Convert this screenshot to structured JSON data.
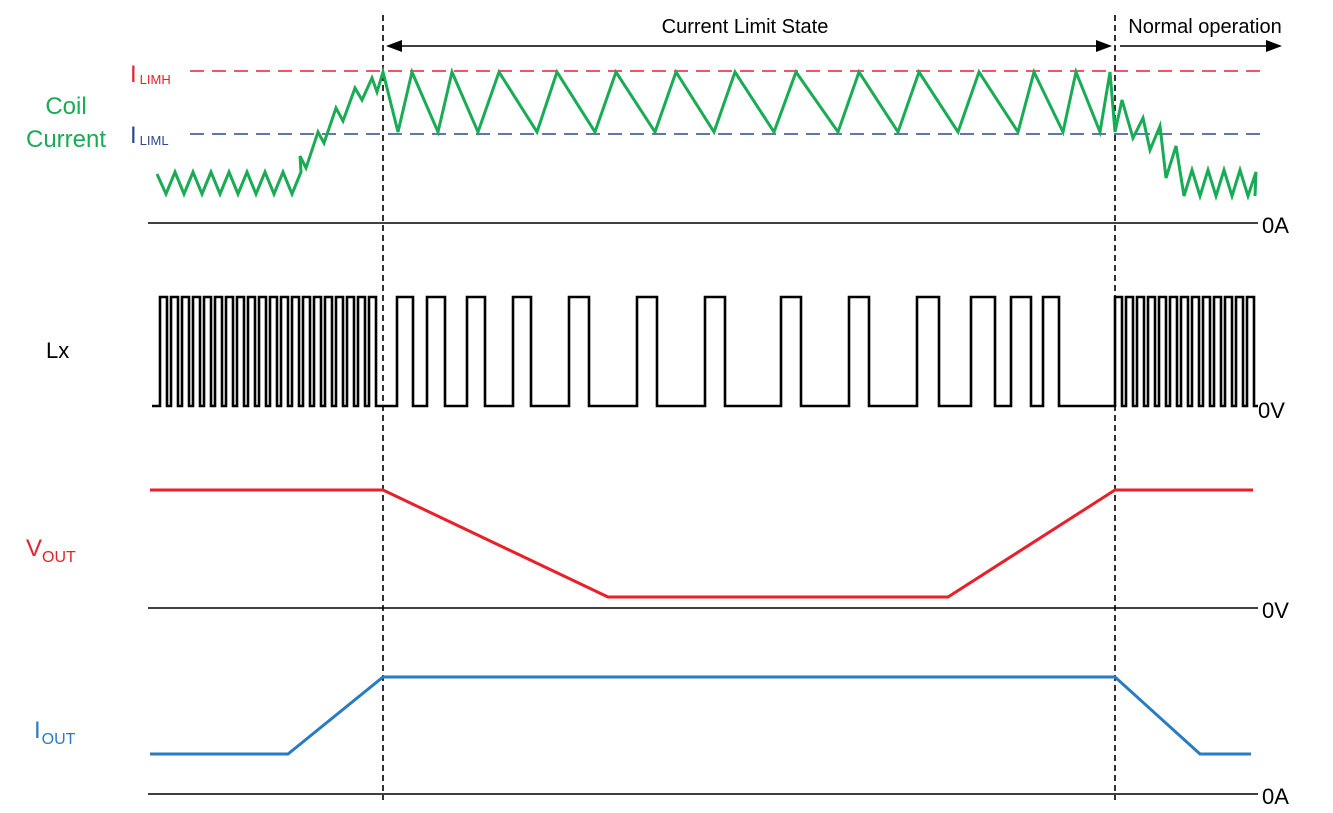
{
  "header": {
    "current_limit_label": "Current Limit State",
    "normal_label": "Normal operation"
  },
  "coil": {
    "label_line1": "Coil",
    "label_line2": "Current",
    "limh_main": "I",
    "limh_sub": "LIMH",
    "liml_main": "I",
    "liml_sub": "LIML",
    "zero_label": "0A"
  },
  "lx": {
    "label": "Lx",
    "zero_label": "0V"
  },
  "vout": {
    "label_main": "V",
    "label_sub": "OUT",
    "zero_label": "0V"
  },
  "iout": {
    "label_main": "I",
    "label_sub": "OUT",
    "zero_label": "0A"
  },
  "colors": {
    "coil_label": "#1aab55",
    "coil_trace": "#1aab55",
    "limh_line": "#e8202a",
    "liml_line": "#2e4a8a",
    "lx_trace": "#000000",
    "vout_trace": "#e8202a",
    "iout_trace": "#2a7bc4",
    "axis": "#000000"
  }
}
